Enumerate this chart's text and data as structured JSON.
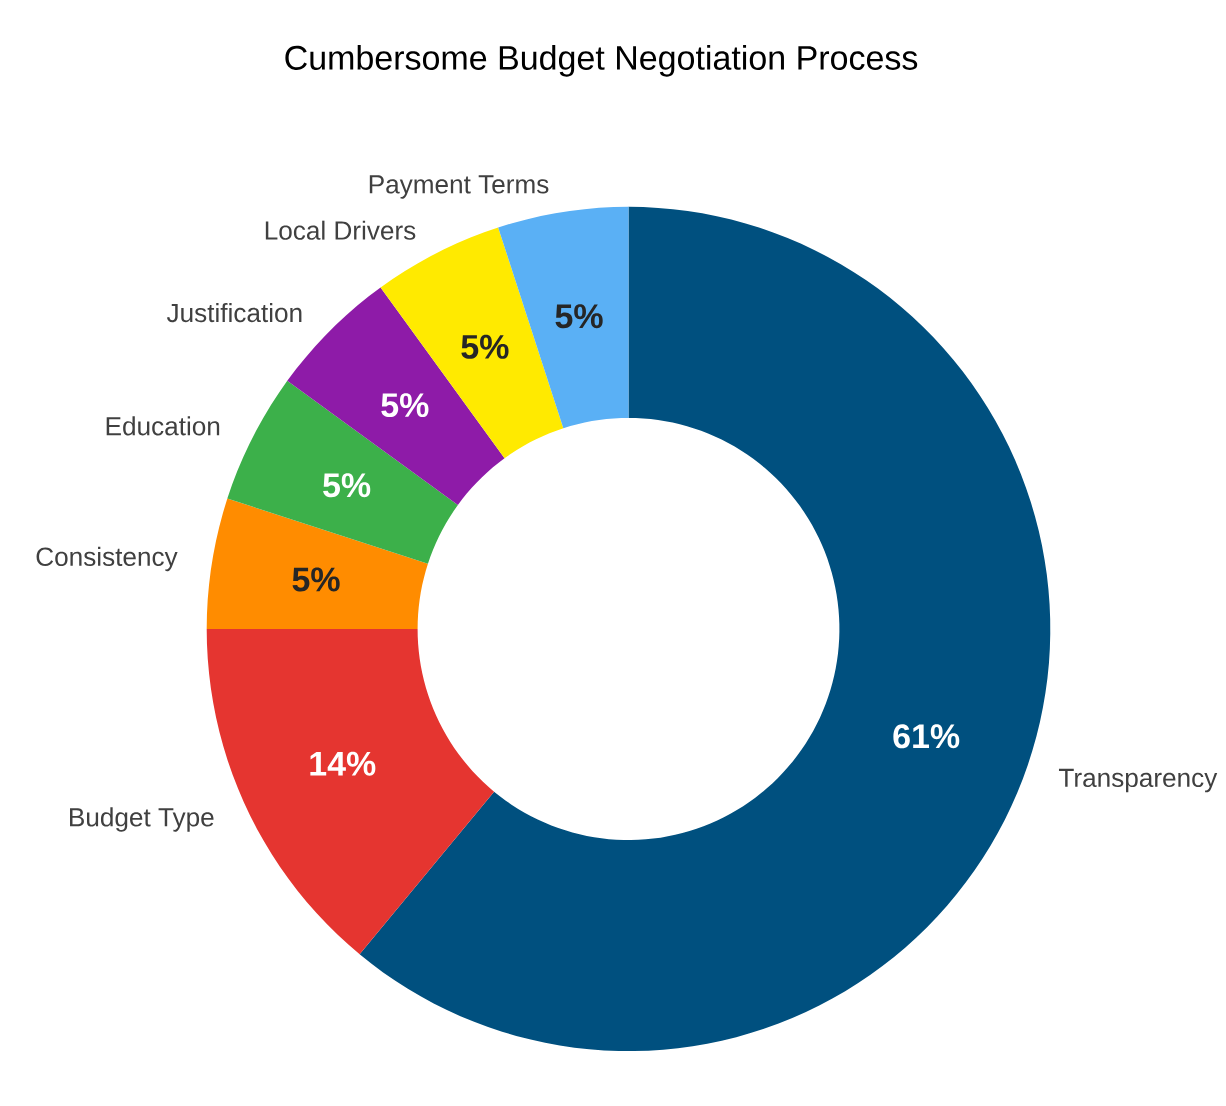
{
  "chart_data": {
    "type": "donut",
    "title": "Cumbersome Budget Negotiation Process",
    "categories": [
      "Transparency",
      "Budget Type",
      "Consistency",
      "Education",
      "Justification",
      "Local Drivers",
      "Payment Terms"
    ],
    "values": [
      61,
      14,
      5,
      5,
      5,
      5,
      5
    ],
    "value_labels": [
      "61%",
      "14%",
      "5%",
      "5%",
      "5%",
      "5%",
      "5%"
    ],
    "colors": [
      "#00507f",
      "#e53530",
      "#ff8c00",
      "#3cb04a",
      "#8e1ba8",
      "#ffea00",
      "#5ab0f5"
    ]
  }
}
